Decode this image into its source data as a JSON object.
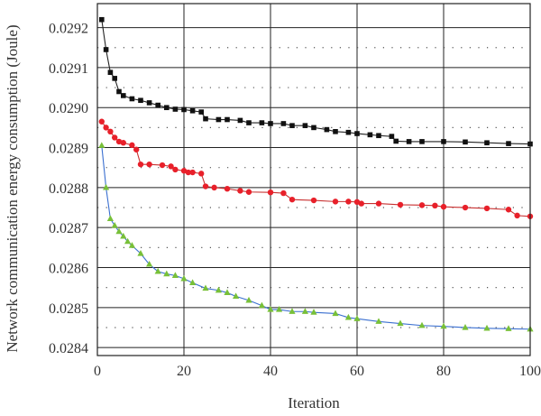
{
  "chart_data": {
    "type": "line",
    "title": "",
    "xlabel": "Iteration",
    "ylabel": "Network communication energy consumption (Joule)",
    "xlim": [
      0,
      100
    ],
    "ylim": [
      0.02838,
      0.02926
    ],
    "grid": true,
    "legend": "none",
    "x_ticks": [
      0,
      20,
      40,
      60,
      80,
      100
    ],
    "x_tick_labels": [
      "0",
      "20",
      "40",
      "60",
      "80",
      "100"
    ],
    "y_ticks": [
      0.0284,
      0.0285,
      0.0286,
      0.0287,
      0.0288,
      0.0289,
      0.029,
      0.0291,
      0.0292
    ],
    "y_tick_labels": [
      "0.0284",
      "0.0285",
      "0.0286",
      "0.0287",
      "0.0288",
      "0.0289",
      "0.0290",
      "0.0291",
      "0.0292"
    ],
    "series": [
      {
        "marker": "square",
        "color": "#111111",
        "line_color": "#222222",
        "x": [
          1,
          2,
          3,
          4,
          5,
          6,
          8,
          10,
          12,
          14,
          16,
          18,
          20,
          22,
          24,
          25,
          28,
          30,
          33,
          35,
          38,
          40,
          43,
          45,
          48,
          50,
          53,
          55,
          58,
          60,
          63,
          65,
          68,
          69,
          72,
          75,
          80,
          85,
          90,
          95,
          100
        ],
        "y": [
          0.02922,
          0.029145,
          0.029088,
          0.029073,
          0.02904,
          0.02903,
          0.029022,
          0.029018,
          0.029012,
          0.029006,
          0.029,
          0.028996,
          0.028995,
          0.028992,
          0.028989,
          0.028972,
          0.02897,
          0.02897,
          0.028968,
          0.028962,
          0.028962,
          0.02896,
          0.02896,
          0.028955,
          0.028955,
          0.02895,
          0.028945,
          0.02894,
          0.028938,
          0.028935,
          0.028932,
          0.02893,
          0.028928,
          0.028916,
          0.028915,
          0.028915,
          0.028915,
          0.028914,
          0.028912,
          0.02891,
          0.028909
        ]
      },
      {
        "marker": "circle",
        "color": "#e8202a",
        "line_color": "#c83030",
        "x": [
          1,
          2,
          3,
          4,
          5,
          6,
          8,
          9,
          10,
          12,
          15,
          17,
          18,
          20,
          21,
          22,
          24,
          25,
          27,
          30,
          33,
          35,
          40,
          43,
          45,
          50,
          55,
          58,
          60,
          61,
          65,
          70,
          75,
          78,
          80,
          85,
          90,
          95,
          97,
          100
        ],
        "y": [
          0.028965,
          0.02895,
          0.02894,
          0.028925,
          0.028915,
          0.028912,
          0.028906,
          0.028895,
          0.028858,
          0.028858,
          0.028856,
          0.028853,
          0.028845,
          0.028842,
          0.028838,
          0.028838,
          0.028835,
          0.028803,
          0.0288,
          0.028797,
          0.028792,
          0.028789,
          0.028788,
          0.028786,
          0.02877,
          0.028768,
          0.028765,
          0.028765,
          0.028764,
          0.02876,
          0.02876,
          0.028757,
          0.028756,
          0.028755,
          0.028752,
          0.02875,
          0.028748,
          0.028745,
          0.02873,
          0.028728
        ]
      },
      {
        "marker": "triangle",
        "color": "#78c038",
        "line_color": "#3a6fd0",
        "x": [
          1,
          2,
          3,
          4,
          5,
          6,
          7,
          8,
          10,
          12,
          14,
          16,
          18,
          20,
          22,
          25,
          28,
          30,
          32,
          35,
          38,
          40,
          42,
          45,
          48,
          50,
          55,
          58,
          60,
          65,
          70,
          75,
          80,
          85,
          90,
          95,
          100
        ],
        "y": [
          0.028905,
          0.0288,
          0.028722,
          0.028705,
          0.02869,
          0.028678,
          0.028665,
          0.028655,
          0.028635,
          0.028608,
          0.02859,
          0.028584,
          0.02858,
          0.028572,
          0.028562,
          0.028548,
          0.028543,
          0.028537,
          0.028528,
          0.028518,
          0.028505,
          0.028495,
          0.028495,
          0.02849,
          0.02849,
          0.028488,
          0.028485,
          0.028475,
          0.028472,
          0.028465,
          0.02846,
          0.028455,
          0.028453,
          0.02845,
          0.028448,
          0.028447,
          0.028446
        ]
      }
    ]
  }
}
